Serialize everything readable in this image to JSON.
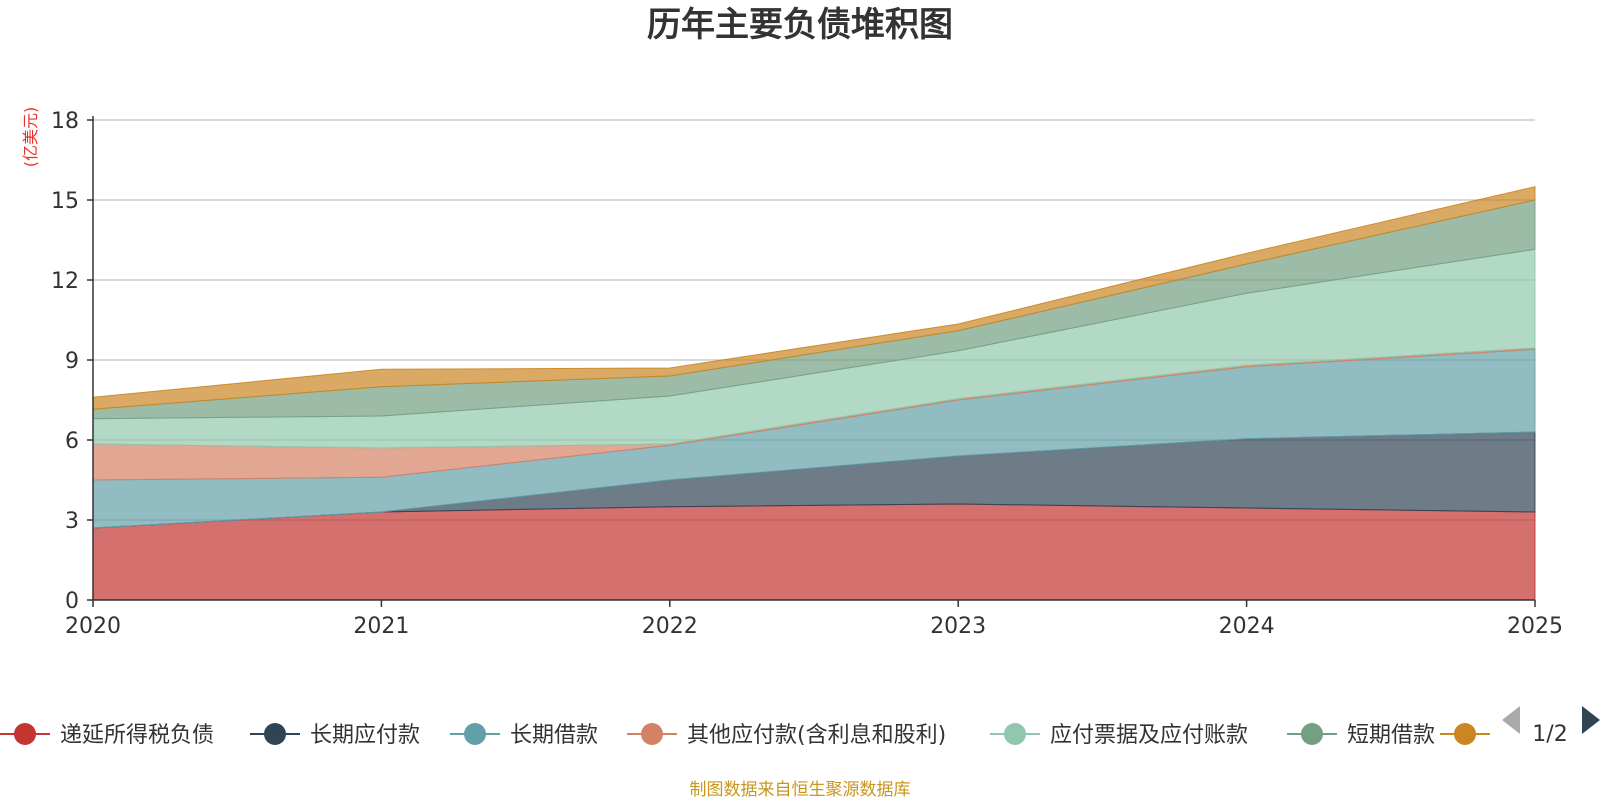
{
  "chart_data": {
    "type": "area",
    "stacked": true,
    "title": "历年主要负债堆积图",
    "ylabel": "(亿美元)",
    "xlabel": "",
    "x": [
      "2020",
      "2021",
      "2022",
      "2023",
      "2024",
      "2025"
    ],
    "ylim": [
      0,
      18
    ],
    "yticks": [
      0,
      3,
      6,
      9,
      12,
      15,
      18
    ],
    "grid": true,
    "series": [
      {
        "name": "递延所得税负债",
        "color": "#c23531",
        "values": [
          2.7,
          3.3,
          3.5,
          3.6,
          3.45,
          3.3
        ]
      },
      {
        "name": "长期应付款",
        "color": "#2f4554",
        "values": [
          0.0,
          0.0,
          1.0,
          1.8,
          2.6,
          3.0
        ]
      },
      {
        "name": "长期借款",
        "color": "#61a0a8",
        "values": [
          1.8,
          1.3,
          1.3,
          2.1,
          2.7,
          3.1
        ]
      },
      {
        "name": "其他应付款(含利息和股利)",
        "color": "#d48265",
        "values": [
          1.35,
          1.1,
          0.05,
          0.05,
          0.05,
          0.05
        ]
      },
      {
        "name": "应付票据及应付账款",
        "color": "#91c7ae",
        "values": [
          0.95,
          1.2,
          1.8,
          1.8,
          2.7,
          3.7
        ]
      },
      {
        "name": "短期借款",
        "color": "#749f83",
        "values": [
          0.35,
          1.1,
          0.75,
          0.75,
          1.1,
          1.85
        ]
      },
      {
        "name": "",
        "color": "#ca8622",
        "values": [
          0.45,
          0.65,
          0.3,
          0.25,
          0.4,
          0.5
        ]
      }
    ],
    "legend": {
      "position": "bottom",
      "page": "1/2"
    },
    "source_note": "制图数据来自恒生聚源数据库"
  }
}
